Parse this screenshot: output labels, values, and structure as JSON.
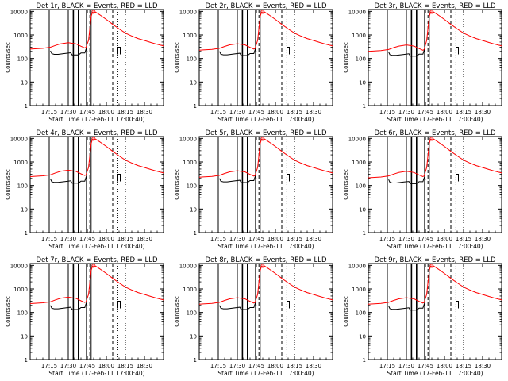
{
  "figure": {
    "panels": [
      {
        "title": "Det 1r, BLACK = Events, RED = LLD"
      },
      {
        "title": "Det 2r, BLACK = Events, RED = LLD"
      },
      {
        "title": "Det 3r, BLACK = Events, RED = LLD"
      },
      {
        "title": "Det 4r, BLACK = Events, RED = LLD"
      },
      {
        "title": "Det 5r, BLACK = Events, RED = LLD"
      },
      {
        "title": "Det 6r, BLACK = Events, RED = LLD"
      },
      {
        "title": "Det 7r, BLACK = Events, RED = LLD"
      },
      {
        "title": "Det 8r, BLACK = Events, RED = LLD"
      },
      {
        "title": "Det 9r, BLACK = Events, RED = LLD"
      }
    ],
    "ylabel": "Counts/sec",
    "xlabel": "Start Time (17-Feb-11 17:00:40)",
    "xticks": [
      "17:15",
      "17:30",
      "17:45",
      "18:00",
      "18:15",
      "18:30"
    ],
    "yticks": [
      "1",
      "10",
      "100",
      "1000",
      "10000"
    ]
  },
  "chart_data": {
    "type": "line",
    "layout": "3x3 grid of detector panels",
    "x_unit": "minutes since 17:00:40",
    "xlim": [
      0,
      105
    ],
    "ylim": [
      1,
      12000
    ],
    "yscale": "log",
    "grid": false,
    "series_colors": {
      "Events": "#000000",
      "LLD": "#ff0000"
    },
    "series": [
      {
        "name": "LLD",
        "x": [
          0,
          10,
          16,
          20,
          24,
          30,
          36,
          40,
          43,
          44,
          46,
          48,
          49,
          50,
          52,
          55,
          60,
          65,
          70,
          75,
          80,
          85,
          90,
          95,
          100,
          105
        ],
        "y": [
          250,
          270,
          300,
          360,
          420,
          470,
          420,
          330,
          280,
          300,
          600,
          6000,
          9000,
          9500,
          9000,
          7000,
          4500,
          2800,
          1800,
          1200,
          900,
          700,
          580,
          480,
          400,
          340
        ]
      },
      {
        "name": "Events",
        "x": [
          16,
          17,
          19,
          22,
          28,
          32,
          33,
          38,
          40,
          43,
          44,
          45
        ],
        "y": [
          210,
          160,
          150,
          150,
          165,
          175,
          140,
          140,
          170,
          170,
          250,
          200
        ]
      }
    ],
    "vertical_markers_min": [
      15,
      30,
      34,
      38,
      44.3,
      47,
      48,
      65,
      69,
      75
    ],
    "panel_variants": [
      {
        "panel": "Det 1r",
        "lld_scale": 1.0,
        "events_scale": 1.0
      },
      {
        "panel": "Det 2r",
        "lld_scale": 0.9,
        "events_scale": 0.95
      },
      {
        "panel": "Det 3r",
        "lld_scale": 0.8,
        "events_scale": 0.9
      },
      {
        "panel": "Det 4r",
        "lld_scale": 0.95,
        "events_scale": 0.9
      },
      {
        "panel": "Det 5r",
        "lld_scale": 0.9,
        "events_scale": 0.95
      },
      {
        "panel": "Det 6r",
        "lld_scale": 0.85,
        "events_scale": 0.85
      },
      {
        "panel": "Det 7r",
        "lld_scale": 0.95,
        "events_scale": 0.95
      },
      {
        "panel": "Det 8r",
        "lld_scale": 0.9,
        "events_scale": 0.95
      },
      {
        "panel": "Det 9r",
        "lld_scale": 0.9,
        "events_scale": 0.9
      }
    ]
  }
}
